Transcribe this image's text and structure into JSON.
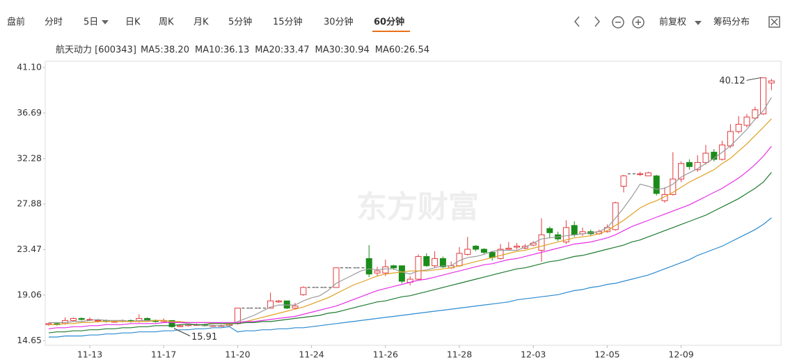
{
  "toolbar": {
    "tabs": [
      "盘前",
      "分时",
      "5日",
      "日K",
      "周K",
      "月K",
      "5分钟",
      "15分钟",
      "30分钟",
      "60分钟"
    ],
    "adjust": "前复权",
    "chips": "筹码分布"
  },
  "chart_data": {
    "type": "candlestick",
    "title": "航天动力 [600343]",
    "watermark": "东方财富",
    "up_color": "#e4393c",
    "down_color": "#1a8c1a",
    "flat_color": "#333333",
    "grid": false,
    "ylim": [
      14.2,
      41.7
    ],
    "yticks": [
      {
        "value": 41.1,
        "label": "41.10"
      },
      36.69,
      32.28,
      27.88,
      23.47,
      19.06,
      14.65
    ],
    "categories": [
      null,
      null,
      null,
      null,
      null,
      "11-13",
      null,
      null,
      null,
      null,
      null,
      null,
      null,
      null,
      "11-17",
      null,
      null,
      null,
      null,
      null,
      null,
      null,
      null,
      "11-20",
      null,
      null,
      null,
      null,
      null,
      null,
      null,
      null,
      "11-24",
      null,
      null,
      null,
      null,
      null,
      null,
      null,
      null,
      "11-26",
      null,
      null,
      null,
      null,
      null,
      null,
      null,
      null,
      "11-28",
      null,
      null,
      null,
      null,
      null,
      null,
      null,
      null,
      "12-03",
      null,
      null,
      null,
      null,
      null,
      null,
      null,
      null,
      "12-05",
      null,
      null,
      null,
      null,
      null,
      null,
      null,
      null,
      "12-09",
      null,
      null,
      null,
      null,
      null,
      null,
      null,
      null,
      null,
      null,
      null
    ],
    "open": [
      16.2,
      16.3,
      16.3,
      16.6,
      16.8,
      16.7,
      16.6,
      16.6,
      16.5,
      16.5,
      16.6,
      16.5,
      16.8,
      16.6,
      16.5,
      16.6,
      16.0,
      16.1,
      16.2,
      16.2,
      16.1,
      16.1,
      16.1,
      16.3,
      17.8,
      17.8,
      17.8,
      17.8,
      18.4,
      18.5,
      17.8,
      19.1,
      19.8,
      19.8,
      19.8,
      19.8,
      21.7,
      21.7,
      21.7,
      22.6,
      21.2,
      21.2,
      21.9,
      21.9,
      20.3,
      20.6,
      22.8,
      21.9,
      22.6,
      21.7,
      21.9,
      23.0,
      23.8,
      23.5,
      23.2,
      22.6,
      23.5,
      23.7,
      23.6,
      23.9,
      23.4,
      25.5,
      24.9,
      24.2,
      25.8,
      25.0,
      25.2,
      25.0,
      25.2,
      25.4,
      29.6,
      30.8,
      30.8,
      30.6,
      30.6,
      28.2,
      28.8,
      30.3,
      31.9,
      31.2,
      31.9,
      32.9,
      32.2,
      33.5,
      34.9,
      35.5,
      36.2,
      36.6,
      39.6
    ],
    "high": [
      16.4,
      16.4,
      16.9,
      16.9,
      16.9,
      16.9,
      16.7,
      16.7,
      16.6,
      16.7,
      16.7,
      17.2,
      16.9,
      16.7,
      16.8,
      16.6,
      16.2,
      16.3,
      16.3,
      16.3,
      16.2,
      16.2,
      16.3,
      17.8,
      17.8,
      17.8,
      17.8,
      19.3,
      18.6,
      18.5,
      18.3,
      19.9,
      19.8,
      19.8,
      19.8,
      21.7,
      21.7,
      21.7,
      21.7,
      23.9,
      21.8,
      22.5,
      22.0,
      21.9,
      20.9,
      23.0,
      23.1,
      23.3,
      22.8,
      22.3,
      23.7,
      24.7,
      23.9,
      23.6,
      23.3,
      24.0,
      24.2,
      24.1,
      24.0,
      24.3,
      26.5,
      25.7,
      25.2,
      26.3,
      26.2,
      25.6,
      25.4,
      25.4,
      25.9,
      28.1,
      30.7,
      30.8,
      31.0,
      31.0,
      30.7,
      29.5,
      32.9,
      32.0,
      32.2,
      32.6,
      33.6,
      33.2,
      34.0,
      35.6,
      36.4,
      36.6,
      37.3,
      40.12,
      40.0
    ],
    "low": [
      16.1,
      16.1,
      16.2,
      16.5,
      16.6,
      16.6,
      16.4,
      16.4,
      16.4,
      16.4,
      16.4,
      16.4,
      16.5,
      16.4,
      16.4,
      15.91,
      15.95,
      16.0,
      16.1,
      16.0,
      16.0,
      16.0,
      16.0,
      16.2,
      17.8,
      17.8,
      17.8,
      17.8,
      18.3,
      17.7,
      17.7,
      19.0,
      19.8,
      19.8,
      19.8,
      19.8,
      21.7,
      21.7,
      21.7,
      20.8,
      20.9,
      20.9,
      21.5,
      20.2,
      20.0,
      20.5,
      21.8,
      21.7,
      21.7,
      21.6,
      21.8,
      22.9,
      23.3,
      23.0,
      22.4,
      22.5,
      23.4,
      23.5,
      23.5,
      23.8,
      22.3,
      24.6,
      24.3,
      24.0,
      24.7,
      24.8,
      24.8,
      24.9,
      25.1,
      25.3,
      29.0,
      30.8,
      30.6,
      30.6,
      28.7,
      28.0,
      28.7,
      30.0,
      31.2,
      31.0,
      31.7,
      32.0,
      32.1,
      33.3,
      34.7,
      35.3,
      36.0,
      36.5,
      38.9
    ],
    "close": [
      16.3,
      16.2,
      16.6,
      16.8,
      16.7,
      16.7,
      16.6,
      16.5,
      16.5,
      16.6,
      16.5,
      16.8,
      16.6,
      16.5,
      16.6,
      16.0,
      16.1,
      16.2,
      16.2,
      16.1,
      16.1,
      16.1,
      16.2,
      17.8,
      17.8,
      17.8,
      17.8,
      18.5,
      18.5,
      17.8,
      18.0,
      19.8,
      19.8,
      19.8,
      19.8,
      21.7,
      21.7,
      21.7,
      21.7,
      21.1,
      21.4,
      21.8,
      21.7,
      20.4,
      20.6,
      22.8,
      21.9,
      22.6,
      21.8,
      21.9,
      23.1,
      23.5,
      23.5,
      23.2,
      22.7,
      23.5,
      23.6,
      23.8,
      23.8,
      24.1,
      24.9,
      25.1,
      24.5,
      25.6,
      24.9,
      25.2,
      25.0,
      25.2,
      25.6,
      28.0,
      30.6,
      30.8,
      30.8,
      30.9,
      28.9,
      28.8,
      30.3,
      31.8,
      31.5,
      31.9,
      32.8,
      32.2,
      33.6,
      34.9,
      35.6,
      36.3,
      37.0,
      40.1,
      39.8
    ],
    "series": [
      {
        "name": "MA5:38.20",
        "color": "#9a9a9a",
        "values": [
          16.4,
          16.4,
          16.4,
          16.5,
          16.5,
          16.6,
          16.7,
          16.6,
          16.6,
          16.6,
          16.5,
          16.6,
          16.6,
          16.6,
          16.6,
          16.5,
          16.4,
          16.3,
          16.2,
          16.1,
          16.1,
          16.1,
          16.1,
          16.5,
          16.8,
          17.1,
          17.5,
          17.9,
          18.1,
          18.1,
          18.1,
          18.5,
          18.8,
          19.0,
          19.5,
          20.2,
          20.6,
          21.0,
          21.4,
          21.6,
          21.5,
          21.6,
          21.6,
          21.3,
          21.1,
          21.4,
          21.5,
          21.7,
          21.9,
          21.9,
          22.4,
          22.7,
          22.8,
          23.0,
          23.3,
          23.4,
          23.4,
          23.4,
          23.7,
          24.1,
          24.5,
          24.6,
          24.7,
          24.8,
          24.9,
          25.0,
          25.1,
          25.2,
          25.6,
          26.5,
          27.5,
          28.6,
          29.8,
          29.6,
          29.3,
          29.4,
          29.8,
          30.5,
          30.9,
          31.3,
          31.8,
          32.3,
          32.9,
          33.5,
          34.3,
          35.1,
          36.1,
          36.9,
          38.2
        ]
      },
      {
        "name": "MA10:36.13",
        "color": "#e0a020",
        "values": [
          16.2,
          16.2,
          16.3,
          16.3,
          16.4,
          16.4,
          16.5,
          16.5,
          16.5,
          16.5,
          16.5,
          16.5,
          16.5,
          16.6,
          16.6,
          16.5,
          16.5,
          16.4,
          16.4,
          16.4,
          16.3,
          16.3,
          16.2,
          16.4,
          16.5,
          16.7,
          16.9,
          17.1,
          17.3,
          17.5,
          17.7,
          17.9,
          18.2,
          18.5,
          18.8,
          19.2,
          19.6,
          20.0,
          20.3,
          20.6,
          20.9,
          21.1,
          21.2,
          21.3,
          21.4,
          21.4,
          21.4,
          21.5,
          21.6,
          21.7,
          21.9,
          22.1,
          22.3,
          22.5,
          22.7,
          22.9,
          23.1,
          23.3,
          23.4,
          23.6,
          23.8,
          24.0,
          24.2,
          24.4,
          24.6,
          24.7,
          24.8,
          25.0,
          25.3,
          25.8,
          26.3,
          26.9,
          27.5,
          27.9,
          28.2,
          28.6,
          29.0,
          29.5,
          30.0,
          30.4,
          30.8,
          31.2,
          31.8,
          32.3,
          33.0,
          33.7,
          34.5,
          35.3,
          36.13
        ]
      },
      {
        "name": "MA20:33.47",
        "color": "#e62ee6",
        "values": [
          15.8,
          15.9,
          15.9,
          16.0,
          16.0,
          16.1,
          16.1,
          16.2,
          16.2,
          16.2,
          16.3,
          16.3,
          16.3,
          16.3,
          16.4,
          16.4,
          16.4,
          16.4,
          16.4,
          16.4,
          16.4,
          16.4,
          16.4,
          16.4,
          16.5,
          16.5,
          16.6,
          16.7,
          16.8,
          16.9,
          17.0,
          17.2,
          17.4,
          17.6,
          17.8,
          18.0,
          18.3,
          18.6,
          18.9,
          19.2,
          19.5,
          19.7,
          19.9,
          20.1,
          20.3,
          20.5,
          20.6,
          20.8,
          21.0,
          21.2,
          21.4,
          21.6,
          21.8,
          22.0,
          22.1,
          22.3,
          22.5,
          22.6,
          22.8,
          23.0,
          23.2,
          23.4,
          23.6,
          23.8,
          24.0,
          24.1,
          24.2,
          24.4,
          24.6,
          24.9,
          25.3,
          25.7,
          26.0,
          26.3,
          26.6,
          26.9,
          27.2,
          27.5,
          27.8,
          28.2,
          28.6,
          29.0,
          29.4,
          29.9,
          30.4,
          31.0,
          31.7,
          32.5,
          33.47
        ]
      },
      {
        "name": "MA30:30.94",
        "color": "#1e7a2e",
        "values": [
          15.4,
          15.5,
          15.5,
          15.6,
          15.6,
          15.7,
          15.7,
          15.8,
          15.8,
          15.9,
          15.9,
          16.0,
          16.0,
          16.1,
          16.1,
          16.1,
          16.2,
          16.2,
          16.2,
          16.2,
          16.3,
          16.3,
          16.3,
          16.3,
          16.4,
          16.4,
          16.5,
          16.5,
          16.6,
          16.7,
          16.8,
          16.9,
          17.0,
          17.1,
          17.3,
          17.4,
          17.6,
          17.8,
          18.0,
          18.2,
          18.4,
          18.5,
          18.7,
          18.9,
          19.0,
          19.2,
          19.4,
          19.6,
          19.8,
          20.0,
          20.2,
          20.4,
          20.6,
          20.8,
          21.0,
          21.2,
          21.4,
          21.6,
          21.7,
          21.9,
          22.1,
          22.3,
          22.4,
          22.6,
          22.8,
          22.9,
          23.1,
          23.3,
          23.5,
          23.7,
          23.9,
          24.2,
          24.4,
          24.7,
          25.0,
          25.3,
          25.6,
          25.9,
          26.2,
          26.5,
          26.8,
          27.2,
          27.6,
          28.0,
          28.4,
          28.9,
          29.4,
          30.0,
          30.94
        ]
      },
      {
        "name": "MA60:26.54",
        "color": "#2a8ad0",
        "values": [
          15.0,
          15.0,
          15.1,
          15.1,
          15.1,
          15.2,
          15.2,
          15.3,
          15.3,
          15.4,
          15.4,
          15.5,
          15.5,
          15.5,
          15.6,
          15.6,
          15.7,
          15.7,
          15.8,
          15.8,
          15.9,
          15.9,
          16.0,
          15.5,
          15.6,
          15.6,
          15.7,
          15.7,
          15.8,
          15.8,
          15.9,
          15.9,
          16.0,
          16.1,
          16.2,
          16.3,
          16.4,
          16.5,
          16.6,
          16.7,
          16.8,
          16.9,
          17.0,
          17.1,
          17.2,
          17.3,
          17.4,
          17.5,
          17.6,
          17.7,
          17.8,
          17.9,
          18.0,
          18.1,
          18.2,
          18.3,
          18.4,
          18.6,
          18.7,
          18.8,
          18.9,
          19.0,
          19.1,
          19.3,
          19.5,
          19.6,
          19.8,
          19.9,
          20.1,
          20.2,
          20.4,
          20.6,
          20.8,
          21.0,
          21.3,
          21.6,
          21.9,
          22.2,
          22.5,
          22.9,
          23.2,
          23.5,
          23.8,
          24.2,
          24.6,
          25.0,
          25.4,
          25.9,
          26.54
        ]
      }
    ]
  }
}
